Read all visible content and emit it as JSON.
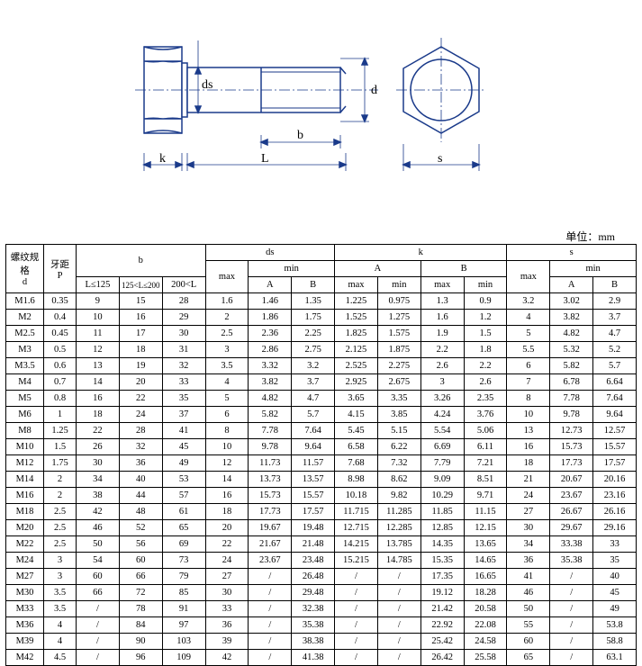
{
  "diagram": {
    "labels": {
      "ds": "ds",
      "d": "d",
      "b": "b",
      "k": "k",
      "L": "L",
      "s": "s"
    },
    "stroke_color": "#1a3a8a",
    "fill_color": "#ffffff"
  },
  "unit_text": "单位：mm",
  "headers": {
    "d": "螺纹规格\nd",
    "p": "牙距\nP",
    "b": "b",
    "ds": "ds",
    "k": "k",
    "s": "s",
    "b_sub": [
      "L≤125",
      "125<L≤200",
      "200<L"
    ],
    "max": "max",
    "min": "min",
    "A": "A",
    "B": "B"
  },
  "rows": [
    [
      "M1.6",
      "0.35",
      "9",
      "15",
      "28",
      "1.6",
      "1.46",
      "1.35",
      "1.225",
      "0.975",
      "1.3",
      "0.9",
      "3.2",
      "3.02",
      "2.9"
    ],
    [
      "M2",
      "0.4",
      "10",
      "16",
      "29",
      "2",
      "1.86",
      "1.75",
      "1.525",
      "1.275",
      "1.6",
      "1.2",
      "4",
      "3.82",
      "3.7"
    ],
    [
      "M2.5",
      "0.45",
      "11",
      "17",
      "30",
      "2.5",
      "2.36",
      "2.25",
      "1.825",
      "1.575",
      "1.9",
      "1.5",
      "5",
      "4.82",
      "4.7"
    ],
    [
      "M3",
      "0.5",
      "12",
      "18",
      "31",
      "3",
      "2.86",
      "2.75",
      "2.125",
      "1.875",
      "2.2",
      "1.8",
      "5.5",
      "5.32",
      "5.2"
    ],
    [
      "M3.5",
      "0.6",
      "13",
      "19",
      "32",
      "3.5",
      "3.32",
      "3.2",
      "2.525",
      "2.275",
      "2.6",
      "2.2",
      "6",
      "5.82",
      "5.7"
    ],
    [
      "M4",
      "0.7",
      "14",
      "20",
      "33",
      "4",
      "3.82",
      "3.7",
      "2.925",
      "2.675",
      "3",
      "2.6",
      "7",
      "6.78",
      "6.64"
    ],
    [
      "M5",
      "0.8",
      "16",
      "22",
      "35",
      "5",
      "4.82",
      "4.7",
      "3.65",
      "3.35",
      "3.26",
      "2.35",
      "8",
      "7.78",
      "7.64"
    ],
    [
      "M6",
      "1",
      "18",
      "24",
      "37",
      "6",
      "5.82",
      "5.7",
      "4.15",
      "3.85",
      "4.24",
      "3.76",
      "10",
      "9.78",
      "9.64"
    ],
    [
      "M8",
      "1.25",
      "22",
      "28",
      "41",
      "8",
      "7.78",
      "7.64",
      "5.45",
      "5.15",
      "5.54",
      "5.06",
      "13",
      "12.73",
      "12.57"
    ],
    [
      "M10",
      "1.5",
      "26",
      "32",
      "45",
      "10",
      "9.78",
      "9.64",
      "6.58",
      "6.22",
      "6.69",
      "6.11",
      "16",
      "15.73",
      "15.57"
    ],
    [
      "M12",
      "1.75",
      "30",
      "36",
      "49",
      "12",
      "11.73",
      "11.57",
      "7.68",
      "7.32",
      "7.79",
      "7.21",
      "18",
      "17.73",
      "17.57"
    ],
    [
      "M14",
      "2",
      "34",
      "40",
      "53",
      "14",
      "13.73",
      "13.57",
      "8.98",
      "8.62",
      "9.09",
      "8.51",
      "21",
      "20.67",
      "20.16"
    ],
    [
      "M16",
      "2",
      "38",
      "44",
      "57",
      "16",
      "15.73",
      "15.57",
      "10.18",
      "9.82",
      "10.29",
      "9.71",
      "24",
      "23.67",
      "23.16"
    ],
    [
      "M18",
      "2.5",
      "42",
      "48",
      "61",
      "18",
      "17.73",
      "17.57",
      "11.715",
      "11.285",
      "11.85",
      "11.15",
      "27",
      "26.67",
      "26.16"
    ],
    [
      "M20",
      "2.5",
      "46",
      "52",
      "65",
      "20",
      "19.67",
      "19.48",
      "12.715",
      "12.285",
      "12.85",
      "12.15",
      "30",
      "29.67",
      "29.16"
    ],
    [
      "M22",
      "2.5",
      "50",
      "56",
      "69",
      "22",
      "21.67",
      "21.48",
      "14.215",
      "13.785",
      "14.35",
      "13.65",
      "34",
      "33.38",
      "33"
    ],
    [
      "M24",
      "3",
      "54",
      "60",
      "73",
      "24",
      "23.67",
      "23.48",
      "15.215",
      "14.785",
      "15.35",
      "14.65",
      "36",
      "35.38",
      "35"
    ],
    [
      "M27",
      "3",
      "60",
      "66",
      "79",
      "27",
      "/",
      "26.48",
      "/",
      "/",
      "17.35",
      "16.65",
      "41",
      "/",
      "40"
    ],
    [
      "M30",
      "3.5",
      "66",
      "72",
      "85",
      "30",
      "/",
      "29.48",
      "/",
      "/",
      "19.12",
      "18.28",
      "46",
      "/",
      "45"
    ],
    [
      "M33",
      "3.5",
      "/",
      "78",
      "91",
      "33",
      "/",
      "32.38",
      "/",
      "/",
      "21.42",
      "20.58",
      "50",
      "/",
      "49"
    ],
    [
      "M36",
      "4",
      "/",
      "84",
      "97",
      "36",
      "/",
      "35.38",
      "/",
      "/",
      "22.92",
      "22.08",
      "55",
      "/",
      "53.8"
    ],
    [
      "M39",
      "4",
      "/",
      "90",
      "103",
      "39",
      "/",
      "38.38",
      "/",
      "/",
      "25.42",
      "24.58",
      "60",
      "/",
      "58.8"
    ],
    [
      "M42",
      "4.5",
      "/",
      "96",
      "109",
      "42",
      "/",
      "41.38",
      "/",
      "/",
      "26.42",
      "25.58",
      "65",
      "/",
      "63.1"
    ]
  ]
}
